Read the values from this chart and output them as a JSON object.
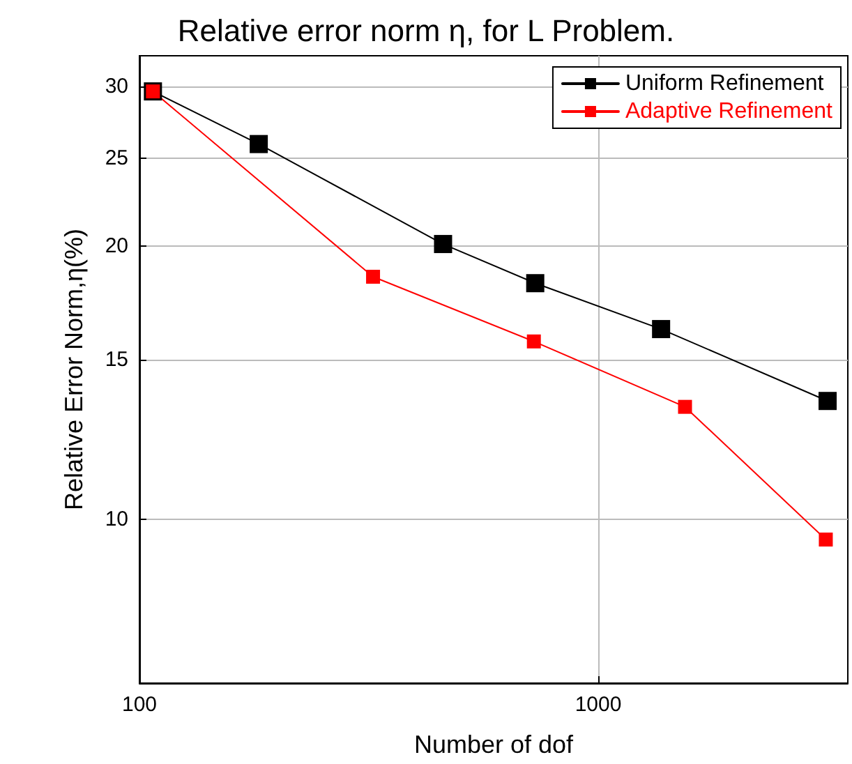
{
  "chart_data": {
    "type": "line",
    "title": "Relative error norm η, for L Problem.",
    "xlabel": "Number of dof",
    "ylabel": "Relative Error Norm,η(%)",
    "log": "xy",
    "xlim": [
      100,
      3500
    ],
    "ylim": [
      6.6,
      32.4
    ],
    "xticks": [
      100,
      1000
    ],
    "yticks": [
      10,
      15,
      20,
      25,
      30
    ],
    "grid": true,
    "legend": "top right",
    "marker": "square",
    "line_style": "solid",
    "series": [
      {
        "name": "Uniform Refinement",
        "color": "#000000",
        "x": [
          107,
          182,
          459,
          729,
          1371,
          3162
        ],
        "values": [
          29.6,
          25.9,
          20.1,
          18.2,
          16.2,
          13.5
        ]
      },
      {
        "name": "Adaptive Refinement",
        "color": "#ff0000",
        "x": [
          107,
          323,
          724,
          1546,
          3134
        ],
        "values": [
          29.6,
          18.5,
          15.7,
          13.3,
          9.5
        ]
      }
    ]
  }
}
